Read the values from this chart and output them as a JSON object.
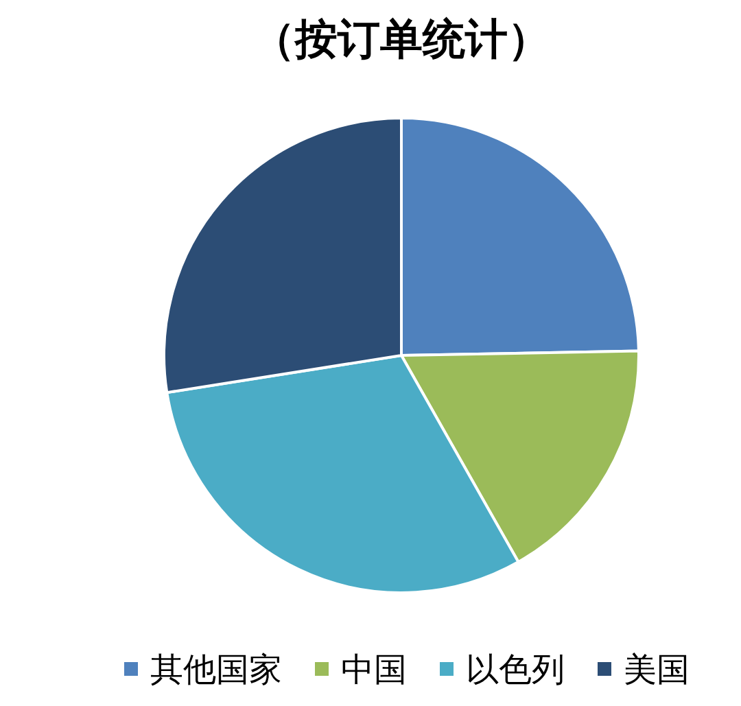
{
  "chart_data": {
    "type": "pie",
    "title": "（按订单统计）",
    "categories": [
      "其他国家",
      "中国",
      "以色列",
      "美国"
    ],
    "values": [
      24.7,
      17.1,
      30.7,
      27.5
    ],
    "colors": [
      "#4f81bd",
      "#9bbb59",
      "#4bacc6",
      "#2c4d75"
    ],
    "legend": "bottom"
  }
}
